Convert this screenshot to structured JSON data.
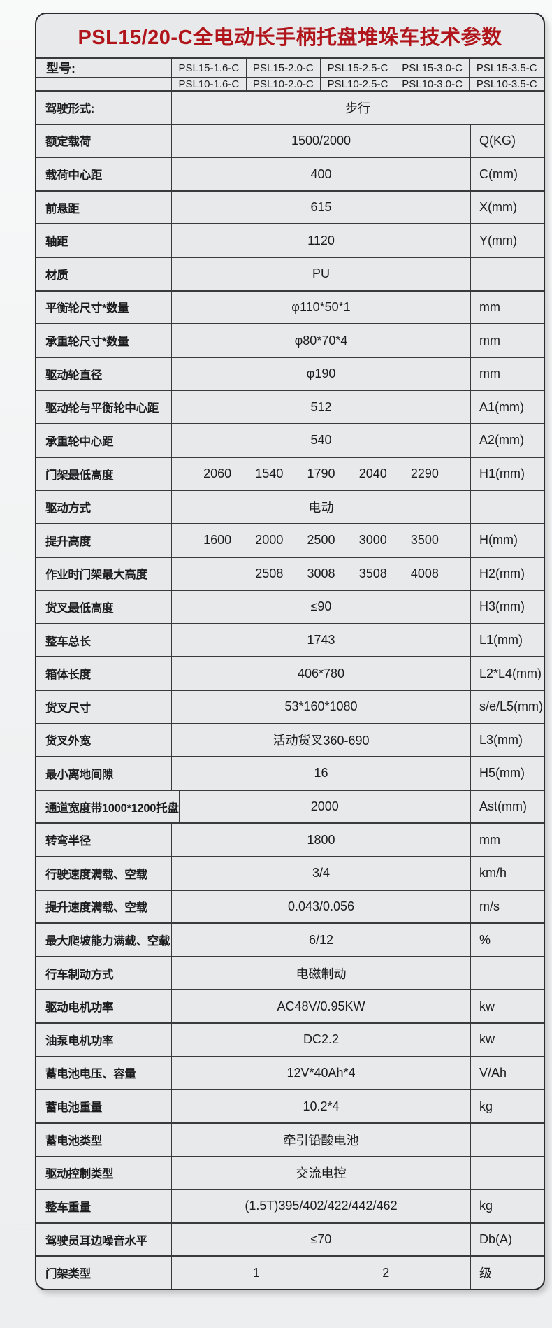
{
  "title": "PSL15/20-C全电动长手柄托盘堆垛车技术参数",
  "colors": {
    "title_red": "#b0151b",
    "table_border": "#2a2a2e",
    "grid_line": "#3a3a3e",
    "card_bg": "#e7e9eb"
  },
  "header": {
    "label": "型号:",
    "rows": [
      [
        "PSL15-1.6-C",
        "PSL15-2.0-C",
        "PSL15-2.5-C",
        "PSL15-3.0-C",
        "PSL15-3.5-C"
      ],
      [
        "PSL10-1.6-C",
        "PSL10-2.0-C",
        "PSL10-2.5-C",
        "PSL10-3.0-C",
        "PSL10-3.5-C"
      ]
    ]
  },
  "rows": [
    {
      "label": "驾驶形式:",
      "values": [
        "步行"
      ],
      "unit": null
    },
    {
      "label": "额定载荷",
      "values": [
        "1500/2000"
      ],
      "unit": "Q(KG)"
    },
    {
      "label": "载荷中心距",
      "values": [
        "400"
      ],
      "unit": "C(mm)"
    },
    {
      "label": "前悬距",
      "values": [
        "615"
      ],
      "unit": "X(mm)"
    },
    {
      "label": "轴距",
      "values": [
        "1120"
      ],
      "unit": "Y(mm)"
    },
    {
      "label": "材质",
      "values": [
        "PU"
      ],
      "unit": ""
    },
    {
      "label": "平衡轮尺寸*数量",
      "values": [
        "φ110*50*1"
      ],
      "unit": "mm"
    },
    {
      "label": "承重轮尺寸*数量",
      "values": [
        "φ80*70*4"
      ],
      "unit": "mm"
    },
    {
      "label": "驱动轮直径",
      "values": [
        "φ190"
      ],
      "unit": "mm"
    },
    {
      "label": "驱动轮与平衡轮中心距",
      "values": [
        "512"
      ],
      "unit": "A1(mm)"
    },
    {
      "label": "承重轮中心距",
      "values": [
        "540"
      ],
      "unit": "A2(mm)"
    },
    {
      "label": "门架最低高度",
      "values": [
        "2060",
        "1540",
        "1790",
        "2040",
        "2290"
      ],
      "unit": "H1(mm)"
    },
    {
      "label": "驱动方式",
      "values": [
        "电动"
      ],
      "unit": ""
    },
    {
      "label": "提升高度",
      "values": [
        "1600",
        "2000",
        "2500",
        "3000",
        "3500"
      ],
      "unit": "H(mm)"
    },
    {
      "label": "作业时门架最大高度",
      "values": [
        "",
        "2508",
        "3008",
        "3508",
        "4008"
      ],
      "unit": "H2(mm)"
    },
    {
      "label": "货叉最低高度",
      "values": [
        "≤90"
      ],
      "unit": "H3(mm)"
    },
    {
      "label": "整车总长",
      "values": [
        "1743"
      ],
      "unit": "L1(mm)"
    },
    {
      "label": "箱体长度",
      "values": [
        "406*780"
      ],
      "unit": "L2*L4(mm)"
    },
    {
      "label": "货叉尺寸",
      "values": [
        "53*160*1080"
      ],
      "unit": "s/e/L5(mm)"
    },
    {
      "label": "货叉外宽",
      "values": [
        "活动货叉360-690"
      ],
      "unit": "L3(mm)"
    },
    {
      "label": "最小离地间隙",
      "values": [
        "16"
      ],
      "unit": "H5(mm)"
    },
    {
      "label": "通道宽度带1000*1200托盘",
      "values": [
        "2000"
      ],
      "unit": "Ast(mm)"
    },
    {
      "label": "转弯半径",
      "values": [
        "1800"
      ],
      "unit": "mm"
    },
    {
      "label": "行驶速度满载、空载",
      "values": [
        "3/4"
      ],
      "unit": "km/h"
    },
    {
      "label": "提升速度满载、空载",
      "values": [
        "0.043/0.056"
      ],
      "unit": "m/s"
    },
    {
      "label": "最大爬坡能力满载、空载",
      "values": [
        "6/12"
      ],
      "unit": "%"
    },
    {
      "label": "行车制动方式",
      "values": [
        "电磁制动"
      ],
      "unit": ""
    },
    {
      "label": "驱动电机功率",
      "values": [
        "AC48V/0.95KW"
      ],
      "unit": "kw"
    },
    {
      "label": "油泵电机功率",
      "values": [
        "DC2.2"
      ],
      "unit": "kw"
    },
    {
      "label": "蓄电池电压、容量",
      "values": [
        "12V*40Ah*4"
      ],
      "unit": "V/Ah"
    },
    {
      "label": "蓄电池重量",
      "values": [
        "10.2*4"
      ],
      "unit": "kg"
    },
    {
      "label": "蓄电池类型",
      "values": [
        "牵引铅酸电池"
      ],
      "unit": ""
    },
    {
      "label": "驱动控制类型",
      "values": [
        "交流电控"
      ],
      "unit": ""
    },
    {
      "label": "整车重量",
      "values": [
        "(1.5T)395/402/422/442/462"
      ],
      "unit": "kg"
    },
    {
      "label": "驾驶员耳边噪音水平",
      "values": [
        "≤70"
      ],
      "unit": "Db(A)"
    },
    {
      "label": "门架类型",
      "values": [
        "1",
        "2"
      ],
      "unit": "级"
    }
  ]
}
